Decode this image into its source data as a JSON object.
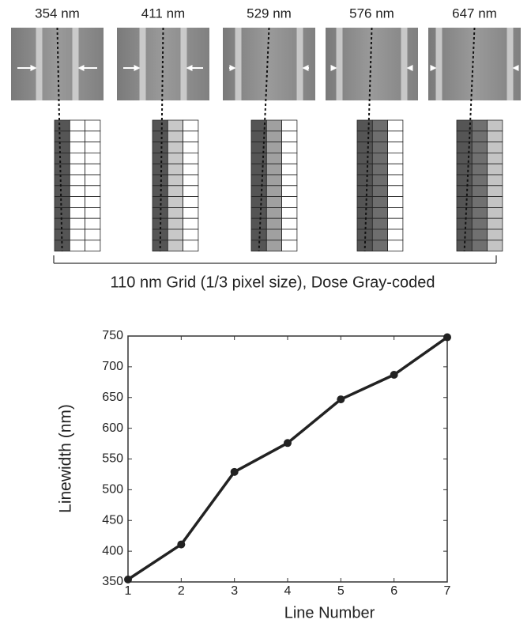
{
  "panels": {
    "labels": [
      "354 nm",
      "411 nm",
      "529 nm",
      "576 nm",
      "647 nm"
    ],
    "caption": "110 nm Grid (1/3 pixel size), Dose Gray-coded"
  },
  "chart_data": {
    "type": "line",
    "x": [
      1,
      2,
      3,
      4,
      5,
      6,
      7
    ],
    "values": [
      354,
      411,
      529,
      576,
      647,
      687,
      748
    ],
    "color": "#222222",
    "xlabel": "Line Number",
    "ylabel": "Linewidth (nm)",
    "xlim": [
      1,
      7
    ],
    "xticks": [
      1,
      2,
      3,
      4,
      5,
      6,
      7
    ],
    "ylim": [
      350,
      750
    ],
    "yticks": [
      350,
      400,
      450,
      500,
      550,
      600,
      650,
      700,
      750
    ]
  }
}
